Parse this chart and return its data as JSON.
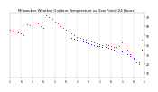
{
  "title": "Milwaukee Weather Outdoor Temperature vs Dew Point (24 Hours)",
  "title_fontsize": 2.8,
  "bg_color": "#ffffff",
  "plot_bg_color": "#ffffff",
  "text_color": "#000000",
  "grid_color": "#aaaaaa",
  "temp_color": "#ff0000",
  "dew_color": "#0000ff",
  "black_color": "#000000",
  "tick_fontsize": 2.2,
  "xlim": [
    0,
    48
  ],
  "ylim": [
    5,
    75
  ],
  "yticks": [
    10,
    20,
    30,
    40,
    50,
    60,
    70
  ],
  "ytick_labels": [
    "10",
    "20",
    "30",
    "40",
    "50",
    "60",
    "70"
  ],
  "vgrid_positions": [
    4,
    8,
    12,
    16,
    20,
    24,
    28,
    32,
    36,
    40,
    44,
    48
  ],
  "xtick_positions": [
    0,
    4,
    8,
    12,
    16,
    20,
    24,
    28,
    32,
    36,
    40,
    44,
    48
  ],
  "xtick_labels": [
    "1",
    "6",
    "1",
    "6",
    "1",
    "6",
    "1",
    "6",
    "1",
    "6",
    "1",
    "6",
    "1"
  ],
  "temp_x": [
    0,
    1,
    2,
    3,
    4,
    5,
    6,
    7,
    8,
    9,
    10,
    11,
    12,
    13,
    14,
    15,
    16,
    17,
    18,
    19,
    20,
    21,
    22,
    23,
    24,
    25,
    26,
    27,
    28,
    29,
    30,
    31,
    32,
    33,
    34,
    35,
    36,
    37,
    38,
    39,
    40,
    41,
    42,
    43,
    44,
    45,
    46,
    47
  ],
  "temp_y": [
    56,
    55,
    54,
    53,
    52,
    50,
    62,
    61,
    65,
    64,
    63,
    60,
    58,
    72,
    70,
    68,
    65,
    63,
    60,
    58,
    56,
    54,
    52,
    50,
    49,
    48,
    47,
    46,
    45,
    44,
    43,
    42,
    41,
    40,
    41,
    40,
    39,
    38,
    38,
    39,
    43,
    40,
    35,
    30,
    25,
    22,
    20,
    46
  ],
  "dew_x": [
    22,
    23,
    24,
    25,
    26,
    27,
    28,
    29,
    30,
    31,
    32,
    33,
    34,
    35,
    36,
    37,
    38,
    39,
    40,
    41,
    42,
    43,
    44,
    45,
    46,
    47
  ],
  "dew_y": [
    48,
    47,
    46,
    45,
    44,
    43,
    42,
    41,
    40,
    39,
    39,
    38,
    38,
    37,
    36,
    35,
    34,
    34,
    33,
    32,
    30,
    28,
    26,
    24,
    22,
    35
  ],
  "marker_size": 0.6
}
